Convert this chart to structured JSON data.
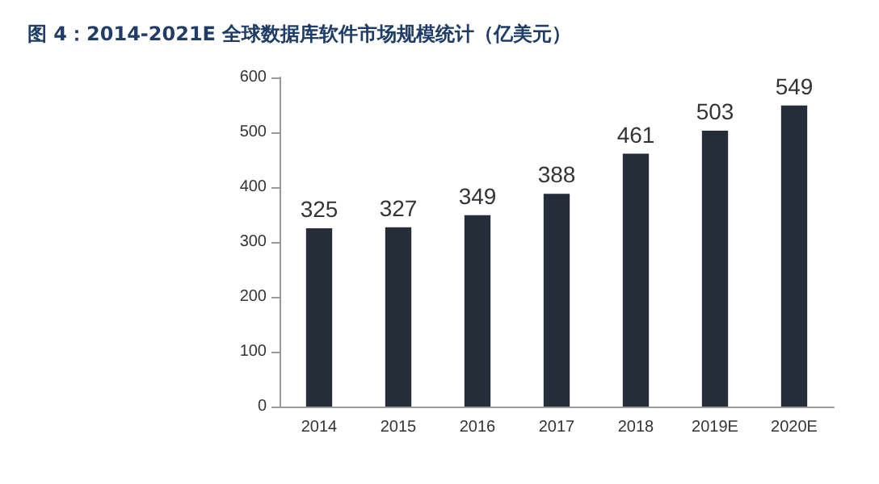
{
  "chart_data": {
    "type": "bar",
    "title": "图 4：2014-2021E 全球数据库软件市场规模统计（亿美元）",
    "categories": [
      "2014",
      "2015",
      "2016",
      "2017",
      "2018",
      "2019E",
      "2020E"
    ],
    "values": [
      325,
      327,
      349,
      388,
      461,
      503,
      549
    ],
    "color": "#252d38",
    "ylim": [
      0,
      600
    ],
    "yticks": [
      0,
      100,
      200,
      300,
      400,
      500,
      600
    ],
    "grid": false,
    "data_labels": true
  }
}
